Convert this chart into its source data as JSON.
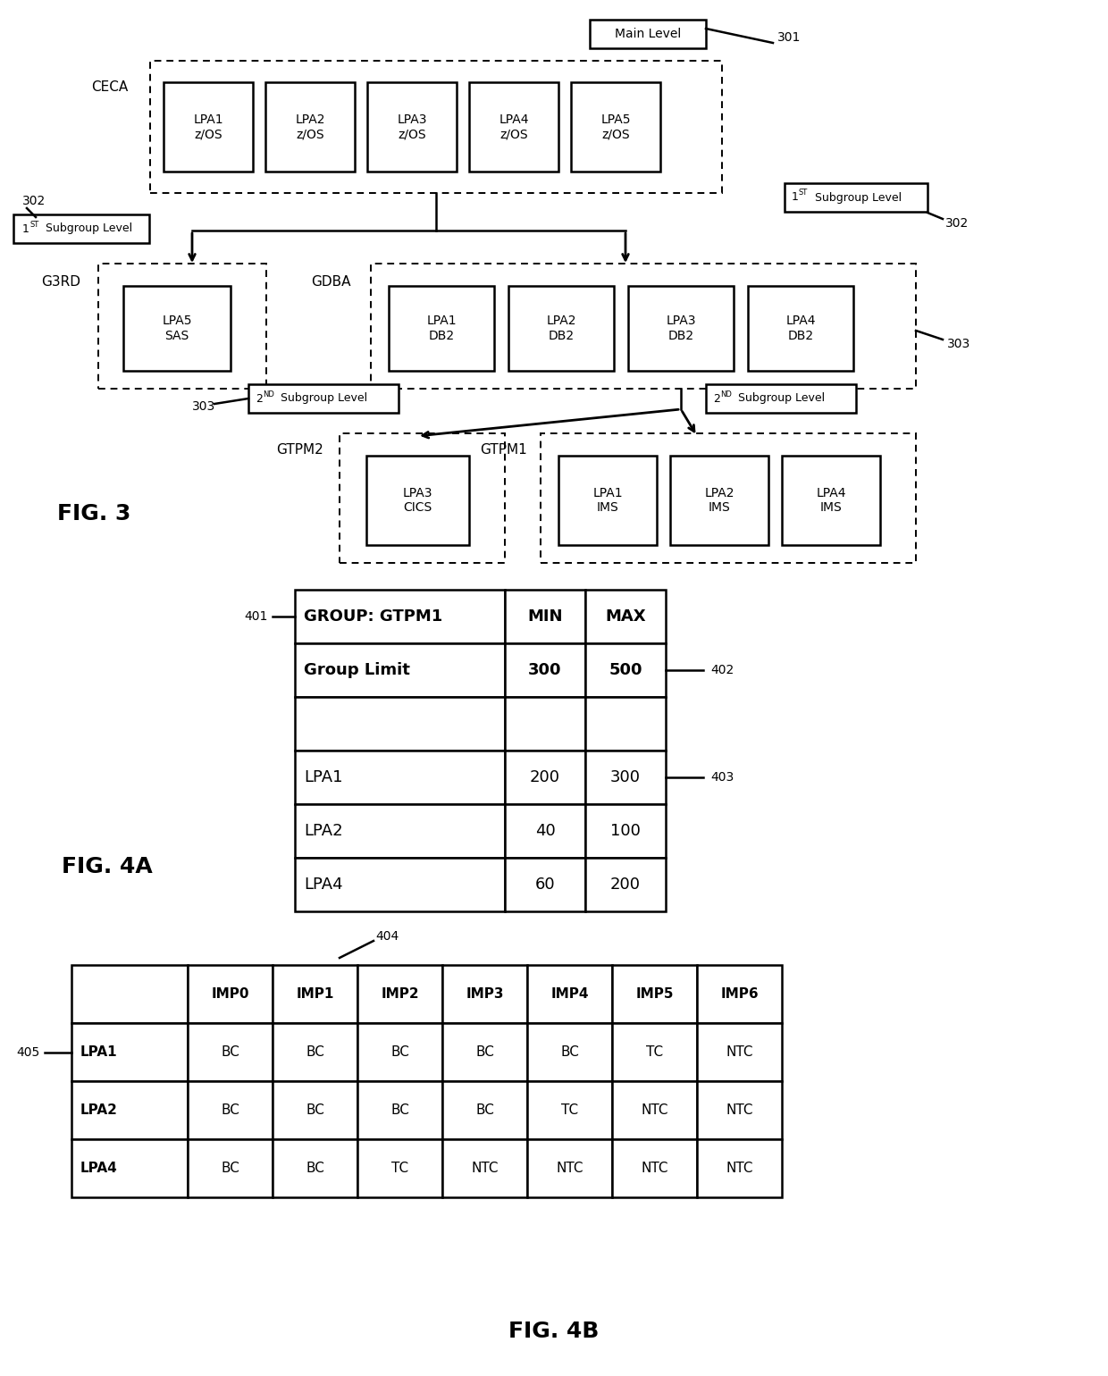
{
  "bg_color": "#ffffff",
  "fig3": {
    "title": "FIG. 3",
    "main_level_label": "Main Level",
    "main_level_ref": "301",
    "ceca_label": "CECA",
    "ceca_boxes": [
      "LPA1\nz/OS",
      "LPA2\nz/OS",
      "LPA3\nz/OS",
      "LPA4\nz/OS",
      "LPA5\nz/OS"
    ],
    "subgroup1_label": "1ST Subgroup Level",
    "subgroup1_ref": "302",
    "g3rd_label": "G3RD",
    "g3rd_box": "LPA5\nSAS",
    "gdba_label": "GDBA",
    "gdba_boxes": [
      "LPA1\nDB2",
      "LPA2\nDB2",
      "LPA3\nDB2",
      "LPA4\nDB2"
    ],
    "subgroup2_ref": "303",
    "subgroup2_label": "2ND Subgroup Level",
    "gtpm2_label": "GTPM2",
    "gtpm2_box": "LPA3\nCICS",
    "gtpm1_label": "GTPM1",
    "gtpm1_boxes": [
      "LPA1\nIMS",
      "LPA2\nIMS",
      "LPA4\nIMS"
    ]
  },
  "fig4a": {
    "title": "FIG. 4A",
    "ref_401": "401",
    "ref_402": "402",
    "ref_403": "403",
    "rows": [
      [
        "GROUP: GTPM1",
        "MIN",
        "MAX"
      ],
      [
        "Group Limit",
        "300",
        "500"
      ],
      [
        "",
        "",
        ""
      ],
      [
        "LPA1",
        "200",
        "300"
      ],
      [
        "LPA2",
        "40",
        "100"
      ],
      [
        "LPA4",
        "60",
        "200"
      ]
    ],
    "row_bold": [
      true,
      true,
      false,
      false,
      false,
      false
    ]
  },
  "fig4b": {
    "title": "FIG. 4B",
    "ref_404": "404",
    "ref_405": "405",
    "col_headers": [
      "",
      "IMP0",
      "IMP1",
      "IMP2",
      "IMP3",
      "IMP4",
      "IMP5",
      "IMP6"
    ],
    "rows": [
      [
        "LPA1",
        "BC",
        "BC",
        "BC",
        "BC",
        "BC",
        "TC",
        "NTC"
      ],
      [
        "LPA2",
        "BC",
        "BC",
        "BC",
        "BC",
        "TC",
        "NTC",
        "NTC"
      ],
      [
        "LPA4",
        "BC",
        "BC",
        "TC",
        "NTC",
        "NTC",
        "NTC",
        "NTC"
      ]
    ]
  }
}
